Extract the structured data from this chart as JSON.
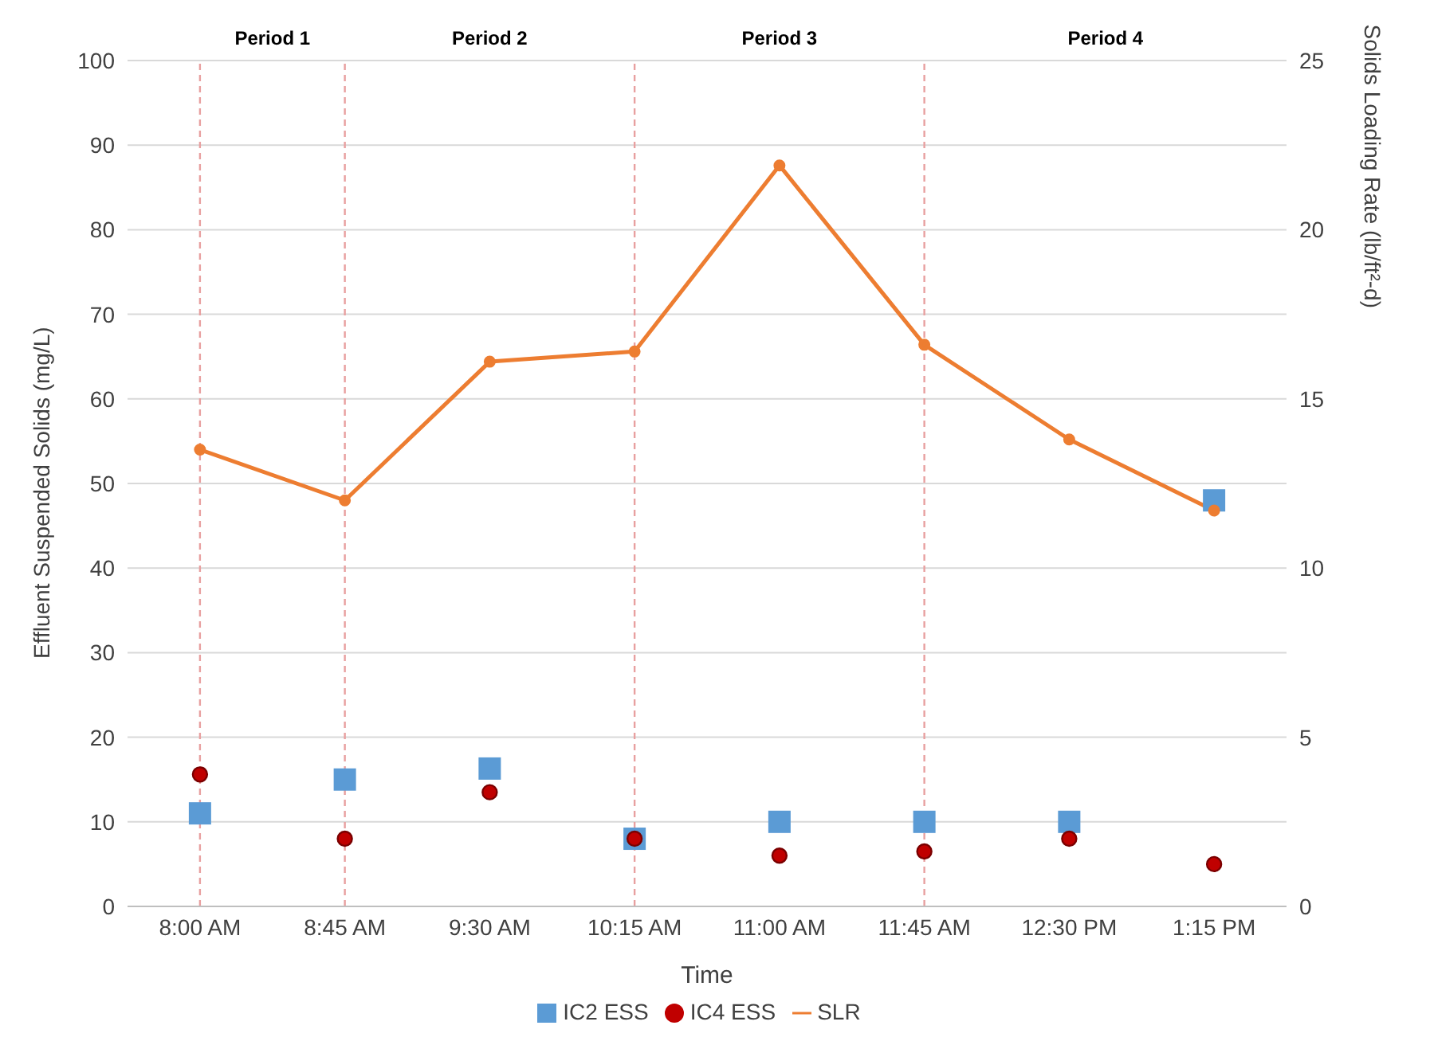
{
  "chart_data": {
    "type": "scatter",
    "xlabel": "Time",
    "ylabel": "Effluent Suspended Solids (mg/L)",
    "y2label": "Solids Loading Rate (lb/ft²-d)",
    "categories": [
      "8:00 AM",
      "8:45 AM",
      "9:30 AM",
      "10:15 AM",
      "11:00 AM",
      "11:45 AM",
      "12:30 PM",
      "1:15 PM"
    ],
    "series": [
      {
        "name": "IC2 ESS",
        "color": "#5b9bd5",
        "marker": "square",
        "values": [
          11,
          15,
          16.3,
          8,
          10,
          10,
          10,
          48
        ]
      },
      {
        "name": "IC4 ESS",
        "color": "#c00000",
        "marker": "circle",
        "values": [
          15.6,
          8,
          13.5,
          8,
          6,
          6.5,
          8,
          5
        ]
      },
      {
        "name": "SLR",
        "type": "line",
        "axis": "y2",
        "color": "#ed7d31",
        "marker": "circle",
        "values": [
          13.5,
          12,
          16.1,
          16.4,
          21.9,
          16.6,
          13.8,
          11.7
        ]
      }
    ],
    "ylim": [
      0,
      100
    ],
    "yticks": [
      0,
      10,
      20,
      30,
      40,
      50,
      60,
      70,
      80,
      90,
      100
    ],
    "y2lim": [
      0,
      25
    ],
    "y2ticks": [
      0,
      5,
      10,
      15,
      20,
      25
    ],
    "ref_lines": [
      {
        "axis": "x",
        "value": "8:00 AM",
        "color": "#e8a0a0",
        "line_style": "dashed"
      },
      {
        "axis": "x",
        "value": "8:45 AM",
        "color": "#e8a0a0",
        "line_style": "dashed"
      },
      {
        "axis": "x",
        "value": "10:15 AM",
        "color": "#e8a0a0",
        "line_style": "dashed"
      },
      {
        "axis": "x",
        "value": "11:45 AM",
        "color": "#e8a0a0",
        "line_style": "dashed"
      }
    ],
    "annotations": [
      "Period 1",
      "Period 2",
      "Period 3",
      "Period 4"
    ],
    "grid": "y",
    "legend": "bottom"
  }
}
